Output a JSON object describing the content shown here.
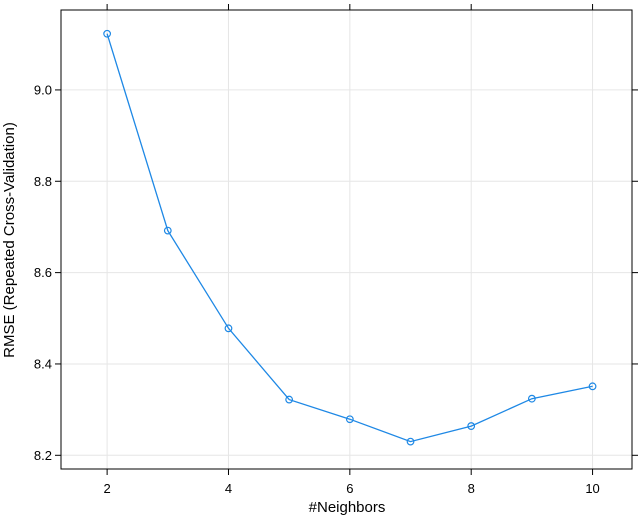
{
  "chart_data": {
    "type": "line",
    "title": "",
    "xlabel": "#Neighbors",
    "ylabel": "RMSE (Repeated Cross-Validation)",
    "x": [
      2,
      3,
      4,
      5,
      6,
      7,
      8,
      9,
      10
    ],
    "series": [
      {
        "values": [
          9.123,
          8.692,
          8.478,
          8.322,
          8.279,
          8.23,
          8.264,
          8.324,
          8.351
        ]
      }
    ],
    "xlim": [
      1.24,
      10.65
    ],
    "ylim": [
      8.17,
      9.175
    ],
    "xticks": [
      2,
      4,
      6,
      8,
      10
    ],
    "xtick_labels": [
      "2",
      "4",
      "6",
      "8",
      "10"
    ],
    "yticks": [
      8.2,
      8.4,
      8.6,
      8.8,
      9.0
    ],
    "ytick_labels": [
      "8.2",
      "8.4",
      "8.6",
      "8.8",
      "9.0"
    ],
    "grid": true,
    "marker": "open-circle",
    "colors": {
      "series": "#1E88E5",
      "grid": "#E6E6E6",
      "frame": "#000000"
    }
  }
}
